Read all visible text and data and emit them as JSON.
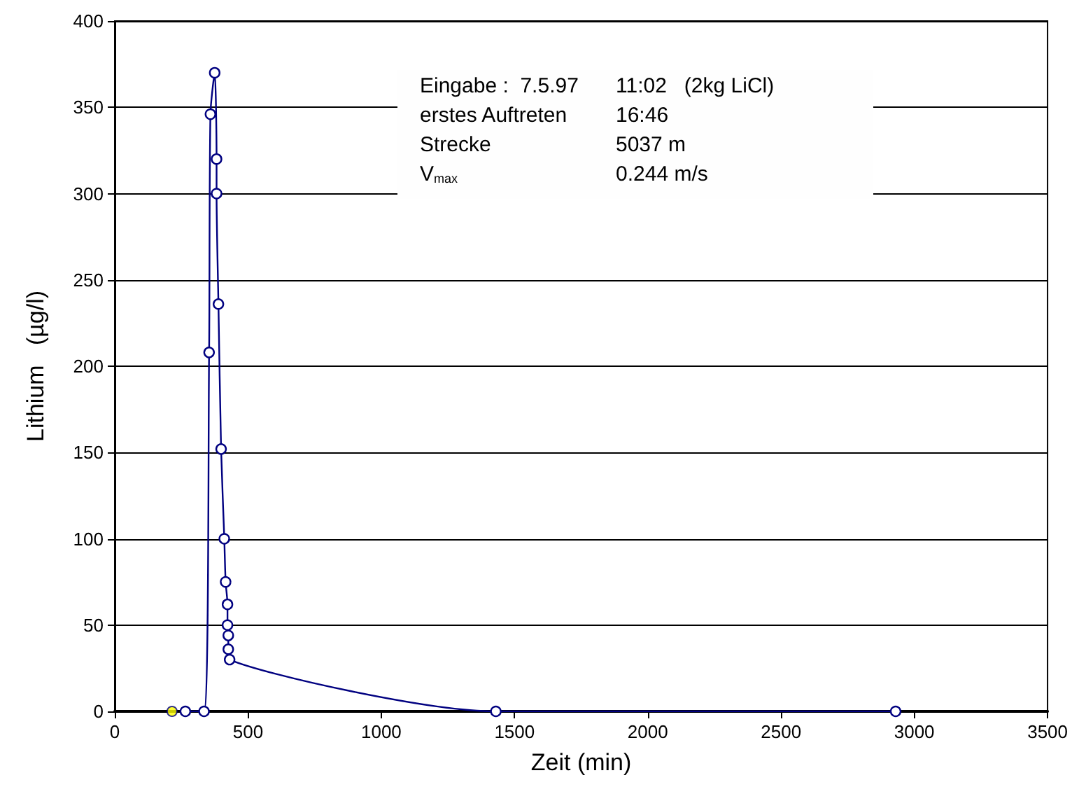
{
  "chart_data": {
    "type": "line",
    "xlabel": "Zeit (min)",
    "ylabel": "Lithium   (µg/l)",
    "xlim": [
      0,
      3500
    ],
    "xticks": [
      0,
      500,
      1000,
      1500,
      2000,
      2500,
      3000,
      3500
    ],
    "ylim": [
      0,
      400
    ],
    "yticks": [
      0,
      50,
      100,
      150,
      200,
      250,
      300,
      350,
      400
    ],
    "grid": "y",
    "marker": "circle",
    "annotations": [
      "Eingabe :  7.5.97",
      "11:02   (2kg LiCl)",
      "erstes Auftreten",
      "16:46",
      "Strecke",
      "5037 m",
      "V$_{max}$",
      "0.244 m/s"
    ],
    "series": [
      {
        "color": "#000080",
        "x": [
          265,
          335,
          354,
          359,
          375,
          382,
          382,
          389,
          399,
          411,
          416,
          423,
          423,
          426,
          426,
          431,
          1430,
          2930
        ],
        "values": [
          0,
          0,
          208,
          346,
          370,
          320,
          300,
          236,
          152,
          100,
          75,
          62,
          50,
          44,
          36,
          30,
          0,
          0
        ]
      },
      {
        "type": "scatter",
        "color": "#ffff00",
        "x": [
          215
        ],
        "values": [
          0
        ]
      }
    ]
  }
}
